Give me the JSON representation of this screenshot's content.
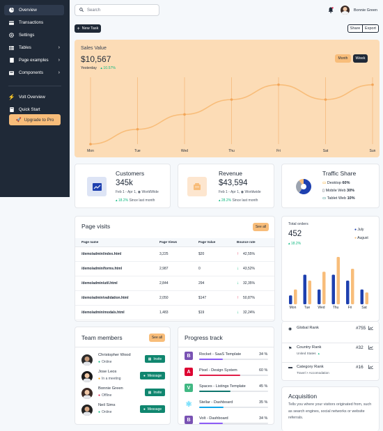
{
  "sidebar": {
    "items": [
      {
        "label": "Overview",
        "icon": "pie-chart-icon"
      },
      {
        "label": "Transactions",
        "icon": "credit-card-icon"
      },
      {
        "label": "Settings",
        "icon": "gear-icon"
      },
      {
        "label": "Tables",
        "icon": "table-icon"
      },
      {
        "label": "Page examples",
        "icon": "file-icon"
      },
      {
        "label": "Components",
        "icon": "box-icon"
      },
      {
        "label": "Volt Overview",
        "icon": "bolt-icon"
      },
      {
        "label": "Quick Start",
        "icon": "book-icon"
      }
    ],
    "upgrade_label": "Upgrade to Pro"
  },
  "topbar": {
    "search_placeholder": "Search",
    "user_name": "Bonnie Green"
  },
  "toolbar": {
    "new_task": "New Task",
    "share": "Share",
    "export": "Export"
  },
  "sales": {
    "title": "Sales Value",
    "value": "$10,567",
    "yesterday_label": "Yesterday",
    "change": "10.57%",
    "tab_month": "Month",
    "tab_week": "Week"
  },
  "chart_data": {
    "type": "line",
    "categories": [
      "Mon",
      "Tue",
      "Wed",
      "Thu",
      "Fri",
      "Sat",
      "Sun"
    ],
    "values": [
      0,
      10,
      20,
      30,
      40,
      30,
      40
    ],
    "ylim": [
      0,
      45
    ]
  },
  "customers": {
    "title": "Customers",
    "value": "345k",
    "period": "Feb 1 - Apr 1,",
    "region": "WorldWide",
    "change": "18.2%",
    "since": "Since last month"
  },
  "revenue": {
    "title": "Revenue",
    "value": "$43,594",
    "period": "Feb 1 - Apr 1,",
    "region": "Worldwide",
    "change": "28.2%",
    "since": "Since last month"
  },
  "traffic": {
    "title": "Traffic Share",
    "items": [
      {
        "label": "Desktop",
        "value": "60%"
      },
      {
        "label": "Mobile Web",
        "value": "30%"
      },
      {
        "label": "Tablet Web",
        "value": "10%"
      }
    ],
    "shares": [
      60,
      30,
      10
    ],
    "colors": [
      "#1e40af",
      "#9ca3af",
      "#f8bd7a"
    ]
  },
  "page_visits": {
    "title": "Page visits",
    "see_all": "See all",
    "headers": [
      "Page name",
      "Page Views",
      "Page Value",
      "Bounce rate"
    ],
    "rows": [
      {
        "name": "/demo/admin/index.html",
        "views": "3,225",
        "value": "$20",
        "bounce": "42,55%",
        "dir": "up"
      },
      {
        "name": "/demo/admin/forms.html",
        "views": "2,987",
        "value": "0",
        "bounce": "43,52%",
        "dir": "down"
      },
      {
        "name": "/demo/admin/util.html",
        "views": "2,844",
        "value": "294",
        "bounce": "32,35%",
        "dir": "down"
      },
      {
        "name": "/demo/admin/validation.html",
        "views": "2,050",
        "value": "$147",
        "bounce": "50,87%",
        "dir": "up"
      },
      {
        "name": "/demo/admin/modals.html",
        "views": "1,483",
        "value": "$19",
        "bounce": "32,24%",
        "dir": "down"
      }
    ]
  },
  "orders": {
    "title": "Total orders",
    "value": "452",
    "change": "18.2%",
    "legend": [
      "July",
      "August"
    ],
    "chart_data": {
      "type": "bar",
      "categories": [
        "Mon",
        "Tue",
        "Wed",
        "Thu",
        "Fri",
        "Sat"
      ],
      "series": [
        {
          "name": "July",
          "values": [
            3,
            10,
            5,
            10,
            8,
            5
          ]
        },
        {
          "name": "August",
          "values": [
            5,
            8,
            11,
            16,
            12,
            4
          ]
        }
      ],
      "ylim": [
        0,
        16
      ]
    }
  },
  "team": {
    "title": "Team members",
    "see_all": "See all",
    "members": [
      {
        "name": "Christopher Wood",
        "status": "Online",
        "status_color": "#10b981",
        "action": "Invite"
      },
      {
        "name": "Jose Leos",
        "status": "In a meeting",
        "status_color": "#f59e0b",
        "action": "Message"
      },
      {
        "name": "Bonnie Green",
        "status": "Offline",
        "status_color": "#e11d48",
        "action": "Invite"
      },
      {
        "name": "Neil Sims",
        "status": "Online",
        "status_color": "#10b981",
        "action": "Message"
      }
    ]
  },
  "progress": {
    "title": "Progress track",
    "items": [
      {
        "label": "Rocket - SaaS Template",
        "value": "34 %",
        "pct": 34,
        "color": "#8b5cf6",
        "icon": "bootstrap-icon",
        "icon_letter": "B",
        "icon_color": "#7952b3"
      },
      {
        "label": "Pixel - Design System",
        "value": "60 %",
        "pct": 60,
        "color": "#e11d48",
        "icon": "angular-icon",
        "icon_letter": "A",
        "icon_color": "#dd0031"
      },
      {
        "label": "Spaces - Listings Template",
        "value": "45 %",
        "pct": 45,
        "color": "#0f766e",
        "icon": "vue-icon",
        "icon_letter": "V",
        "icon_color": "#41b883"
      },
      {
        "label": "Stellar - Dashboard",
        "value": "35 %",
        "pct": 35,
        "color": "#0ea5e9",
        "icon": "react-icon",
        "icon_letter": "⚛",
        "icon_color": "#61dafb"
      },
      {
        "label": "Volt - Dashboard",
        "value": "34 %",
        "pct": 34,
        "color": "#8b5cf6",
        "icon": "bootstrap-icon",
        "icon_letter": "B",
        "icon_color": "#7952b3"
      }
    ]
  },
  "ranks": [
    {
      "label": "Global Rank",
      "sub": "",
      "value": "#755",
      "icon": "globe-icon"
    },
    {
      "label": "Country Rank",
      "sub": "United States",
      "value": "#32",
      "icon": "flag-icon"
    },
    {
      "label": "Category Rank",
      "sub": "Travel > Accomodation",
      "value": "#16",
      "icon": "folder-icon"
    }
  ],
  "acquisition": {
    "title": "Acquisition",
    "text": "Tells you where your visitors originated from, such as search engines, social networks or website referrals."
  }
}
